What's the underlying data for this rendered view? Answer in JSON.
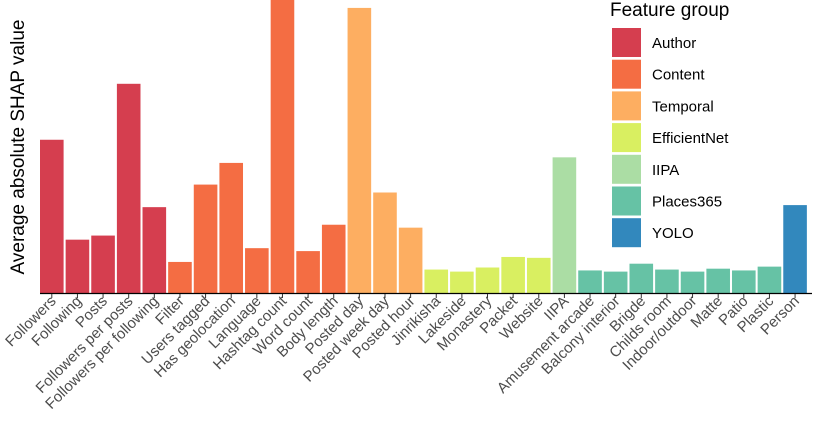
{
  "chart_data": {
    "type": "bar",
    "title": "",
    "xlabel": "",
    "ylabel": "Average absolute SHAP value",
    "ylim": [
      0,
      100
    ],
    "grid": false,
    "legend_title": "Feature group",
    "legend_position": "top-right",
    "groups": [
      {
        "name": "Author",
        "color": "#d53e4f"
      },
      {
        "name": "Content",
        "color": "#f46d43"
      },
      {
        "name": "Temporal",
        "color": "#fdae61"
      },
      {
        "name": "EfficientNet",
        "color": "#d9ef61"
      },
      {
        "name": "IIPA",
        "color": "#abdda4"
      },
      {
        "name": "Places365",
        "color": "#66c2a5"
      },
      {
        "name": "YOLO",
        "color": "#3288bd"
      }
    ],
    "categories": [
      "Followers",
      "Following",
      "Posts",
      "Followers per posts",
      "Followers per following",
      "Filter",
      "Users tagged",
      "Has geolocation",
      "Language",
      "Hashtag count",
      "Word count",
      "Body length",
      "Posted day",
      "Posted week day",
      "Posted hour",
      "Jinrikisha",
      "Lakeside",
      "Monastery",
      "Packet",
      "Website",
      "IIPA",
      "Amusement arcade",
      "Balcony interior",
      "Brigde",
      "Childs room",
      "Indoor/outdoor",
      "Matte",
      "Patio",
      "Plastic",
      "Person"
    ],
    "values": [
      52.3,
      18.2,
      19.6,
      71.4,
      29.3,
      10.6,
      37.0,
      44.4,
      15.3,
      100.0,
      14.3,
      23.3,
      97.3,
      34.3,
      22.3,
      8.0,
      7.3,
      8.7,
      12.3,
      12.0,
      46.3,
      7.7,
      7.3,
      10.0,
      8.0,
      7.3,
      8.3,
      7.7,
      9.0,
      30.0
    ],
    "bar_groups": [
      "Author",
      "Author",
      "Author",
      "Author",
      "Author",
      "Content",
      "Content",
      "Content",
      "Content",
      "Content",
      "Content",
      "Content",
      "Temporal",
      "Temporal",
      "Temporal",
      "EfficientNet",
      "EfficientNet",
      "EfficientNet",
      "EfficientNet",
      "EfficientNet",
      "IIPA",
      "Places365",
      "Places365",
      "Places365",
      "Places365",
      "Places365",
      "Places365",
      "Places365",
      "Places365",
      "YOLO"
    ]
  }
}
